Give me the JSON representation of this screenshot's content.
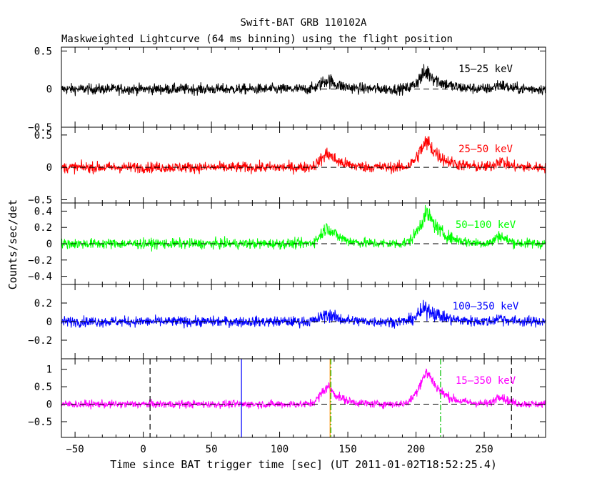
{
  "chart_data": {
    "type": "line",
    "title": "Swift-BAT GRB 110102A",
    "subtitle": "Maskweighted Lightcurve (64 ms binning) using the flight position",
    "xlabel": "Time since BAT trigger time [sec] (UT 2011-01-02T18:52:25.4)",
    "ylabel": "Counts/sec/det",
    "xlim": [
      -60,
      295
    ],
    "x_ticks": [
      -50,
      0,
      50,
      100,
      150,
      200,
      250
    ],
    "x_tick_labels": [
      "−50",
      "0",
      "50",
      "100",
      "150",
      "200",
      "250"
    ],
    "grid": false,
    "peaks": [
      {
        "t": 136,
        "sigma": 5.5,
        "rel": 0.55
      },
      {
        "t": 209,
        "sigma": 6.5,
        "rel": 1.0
      },
      {
        "t": 262,
        "sigma": 3.5,
        "rel": 0.28
      }
    ],
    "vertical_markers": [
      {
        "x": 5,
        "style": "dashed",
        "color": "#000000"
      },
      {
        "x": 72,
        "style": "solid",
        "color": "#0000ff"
      },
      {
        "x": 137,
        "style": "solid",
        "color": "#ff8c00"
      },
      {
        "x": 137.6,
        "style": "dashdot",
        "color": "#00c000"
      },
      {
        "x": 218,
        "style": "dashdot",
        "color": "#00c000"
      },
      {
        "x": 270,
        "style": "dashed",
        "color": "#000000"
      }
    ],
    "panels": [
      {
        "label": "15–25 keV",
        "color": "#000000",
        "ylim": [
          -0.5,
          0.55
        ],
        "y_ticks": [
          -0.5,
          0,
          0.5
        ],
        "y_tick_labels": [
          "−0.5",
          "0",
          "0.5"
        ],
        "noise": 0.05,
        "peak_amp": 0.22
      },
      {
        "label": "25–50 keV",
        "color": "#ff0000",
        "ylim": [
          -0.55,
          0.62
        ],
        "y_ticks": [
          -0.5,
          0,
          0.5
        ],
        "y_tick_labels": [
          "−0.5",
          "0",
          "0.5"
        ],
        "noise": 0.06,
        "peak_amp": 0.38
      },
      {
        "label": "50–100 keV",
        "color": "#00ff00",
        "ylim": [
          -0.5,
          0.5
        ],
        "y_ticks": [
          -0.4,
          -0.2,
          0,
          0.2,
          0.4
        ],
        "y_tick_labels": [
          "−0.4",
          "−0.2",
          "0",
          "0.2",
          "0.4"
        ],
        "noise": 0.045,
        "peak_amp": 0.36
      },
      {
        "label": "100–350 keV",
        "color": "#0000ff",
        "ylim": [
          -0.4,
          0.4
        ],
        "y_ticks": [
          -0.2,
          0,
          0.2
        ],
        "y_tick_labels": [
          "−0.2",
          "0",
          "0.2"
        ],
        "noise": 0.04,
        "peak_amp": 0.14
      },
      {
        "label": "15–350 keV",
        "color": "#ff00ff",
        "ylim": [
          -0.95,
          1.3
        ],
        "y_ticks": [
          -0.5,
          0,
          0.5,
          1
        ],
        "y_tick_labels": [
          "−0.5",
          "0",
          "0.5",
          "1"
        ],
        "noise": 0.08,
        "peak_amp": 0.9,
        "show_markers": true
      }
    ]
  }
}
